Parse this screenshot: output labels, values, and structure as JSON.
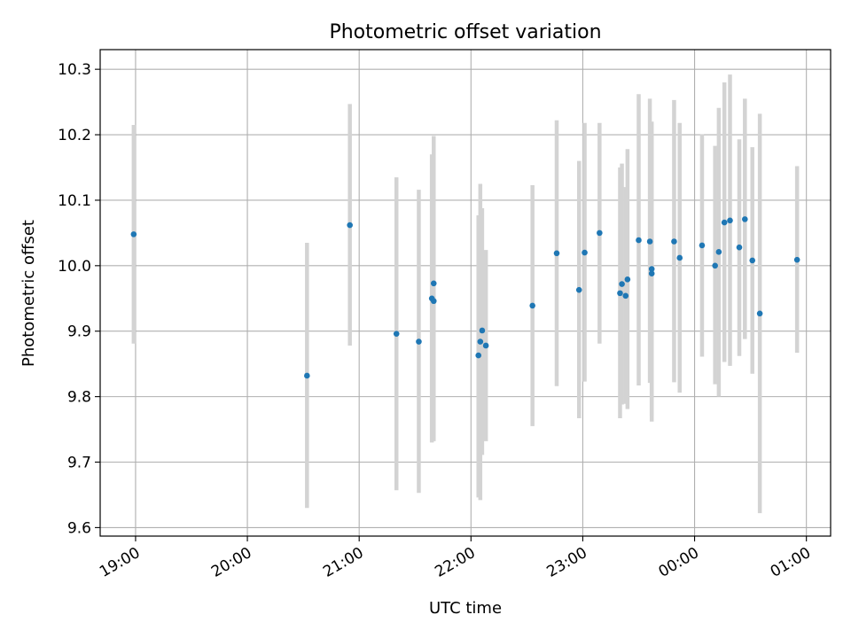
{
  "chart_data": {
    "type": "scatter",
    "title": "Photometric offset variation",
    "xlabel": "UTC time",
    "ylabel": "Photometric offset",
    "grid": true,
    "x_ticks": [
      "19:00",
      "20:00",
      "21:00",
      "22:00",
      "23:00",
      "00:00",
      "01:00"
    ],
    "y_ticks": [
      "9.6",
      "9.7",
      "9.8",
      "9.9",
      "10.0",
      "10.1",
      "10.2",
      "10.3"
    ],
    "xlim": [
      "18:41",
      "01:13"
    ],
    "ylim": [
      9.587,
      10.33
    ],
    "colors": {
      "marker": "#1f77b4",
      "errorbar": "#d3d3d3",
      "grid": "#b0b0b0"
    },
    "points": [
      {
        "x": "18:59",
        "y": 10.048,
        "lo": 9.881,
        "hi": 10.215
      },
      {
        "x": "20:32",
        "y": 9.832,
        "lo": 9.63,
        "hi": 10.035
      },
      {
        "x": "20:55",
        "y": 10.062,
        "lo": 9.878,
        "hi": 10.247
      },
      {
        "x": "21:20",
        "y": 9.896,
        "lo": 9.657,
        "hi": 10.135
      },
      {
        "x": "21:32",
        "y": 9.884,
        "lo": 9.653,
        "hi": 10.116
      },
      {
        "x": "21:39",
        "y": 9.95,
        "lo": 9.73,
        "hi": 10.17
      },
      {
        "x": "21:40",
        "y": 9.973,
        "lo": 9.732,
        "hi": 10.198
      },
      {
        "x": "21:40",
        "y": 9.946,
        "lo": 9.735,
        "hi": 10.158
      },
      {
        "x": "22:04",
        "y": 9.863,
        "lo": 9.646,
        "hi": 10.077
      },
      {
        "x": "22:05",
        "y": 9.884,
        "lo": 9.642,
        "hi": 10.125
      },
      {
        "x": "22:06",
        "y": 9.901,
        "lo": 9.711,
        "hi": 10.088
      },
      {
        "x": "22:08",
        "y": 9.878,
        "lo": 9.732,
        "hi": 10.024
      },
      {
        "x": "22:33",
        "y": 9.939,
        "lo": 9.755,
        "hi": 10.123
      },
      {
        "x": "22:46",
        "y": 10.019,
        "lo": 9.816,
        "hi": 10.222
      },
      {
        "x": "22:58",
        "y": 9.963,
        "lo": 9.767,
        "hi": 10.16
      },
      {
        "x": "23:01",
        "y": 10.02,
        "lo": 9.823,
        "hi": 10.218
      },
      {
        "x": "23:09",
        "y": 10.05,
        "lo": 9.881,
        "hi": 10.218
      },
      {
        "x": "23:20",
        "y": 9.958,
        "lo": 9.767,
        "hi": 10.15
      },
      {
        "x": "23:21",
        "y": 9.972,
        "lo": 9.788,
        "hi": 10.156
      },
      {
        "x": "23:23",
        "y": 9.954,
        "lo": 9.789,
        "hi": 10.12
      },
      {
        "x": "23:24",
        "y": 9.979,
        "lo": 9.781,
        "hi": 10.178
      },
      {
        "x": "23:30",
        "y": 10.039,
        "lo": 9.817,
        "hi": 10.262
      },
      {
        "x": "23:36",
        "y": 10.037,
        "lo": 9.821,
        "hi": 10.255
      },
      {
        "x": "23:37",
        "y": 9.988,
        "lo": 9.762,
        "hi": 10.2
      },
      {
        "x": "23:37",
        "y": 9.995,
        "lo": 9.77,
        "hi": 10.22
      },
      {
        "x": "23:49",
        "y": 10.037,
        "lo": 9.822,
        "hi": 10.253
      },
      {
        "x": "23:52",
        "y": 10.012,
        "lo": 9.806,
        "hi": 10.218
      },
      {
        "x": "00:04",
        "y": 10.031,
        "lo": 9.861,
        "hi": 10.201
      },
      {
        "x": "00:11",
        "y": 10.0,
        "lo": 9.819,
        "hi": 10.183
      },
      {
        "x": "00:13",
        "y": 10.021,
        "lo": 9.8,
        "hi": 10.241
      },
      {
        "x": "00:16",
        "y": 10.066,
        "lo": 9.853,
        "hi": 10.28
      },
      {
        "x": "00:19",
        "y": 10.069,
        "lo": 9.847,
        "hi": 10.292
      },
      {
        "x": "00:24",
        "y": 10.028,
        "lo": 9.862,
        "hi": 10.193
      },
      {
        "x": "00:27",
        "y": 10.071,
        "lo": 9.888,
        "hi": 10.255
      },
      {
        "x": "00:31",
        "y": 10.008,
        "lo": 9.835,
        "hi": 10.181
      },
      {
        "x": "00:35",
        "y": 9.927,
        "lo": 9.622,
        "hi": 10.232
      },
      {
        "x": "00:55",
        "y": 10.009,
        "lo": 9.867,
        "hi": 10.152
      }
    ]
  }
}
